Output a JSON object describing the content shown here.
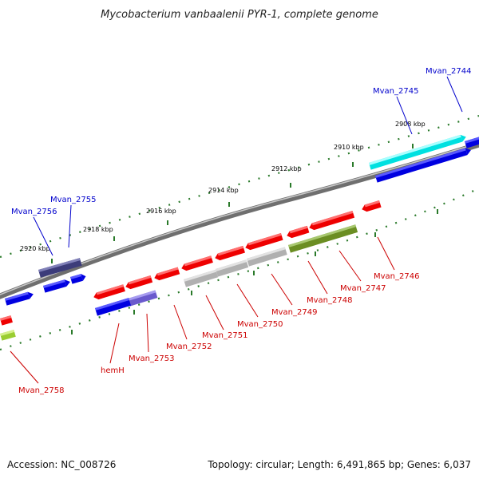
{
  "title": "Mycobacterium vanbaalenii PYR-1, complete genome",
  "footer": {
    "accession": "Accession: NC_008726",
    "topology": "Topology: circular; Length: 6,491,865 bp; Genes: 6,037"
  },
  "ruler_labels": [
    "2908 kbp",
    "2910 kbp",
    "2912 kbp",
    "2914 kbp",
    "2916 kbp",
    "2918 kbp",
    "2920 kbp"
  ],
  "colors": {
    "forward_label": "#0000cc",
    "reverse_label": "#cc0000",
    "backbone": "#808080",
    "tick": "#2a7a2a"
  },
  "forward_genes": [
    "Mvan_2744",
    "Mvan_2745",
    "Mvan_2755",
    "Mvan_2756"
  ],
  "reverse_genes": [
    "Mvan_2746",
    "Mvan_2747",
    "Mvan_2748",
    "Mvan_2749",
    "Mvan_2750",
    "Mvan_2751",
    "Mvan_2752",
    "Mvan_2753",
    "hemH",
    "Mvan_2758"
  ]
}
